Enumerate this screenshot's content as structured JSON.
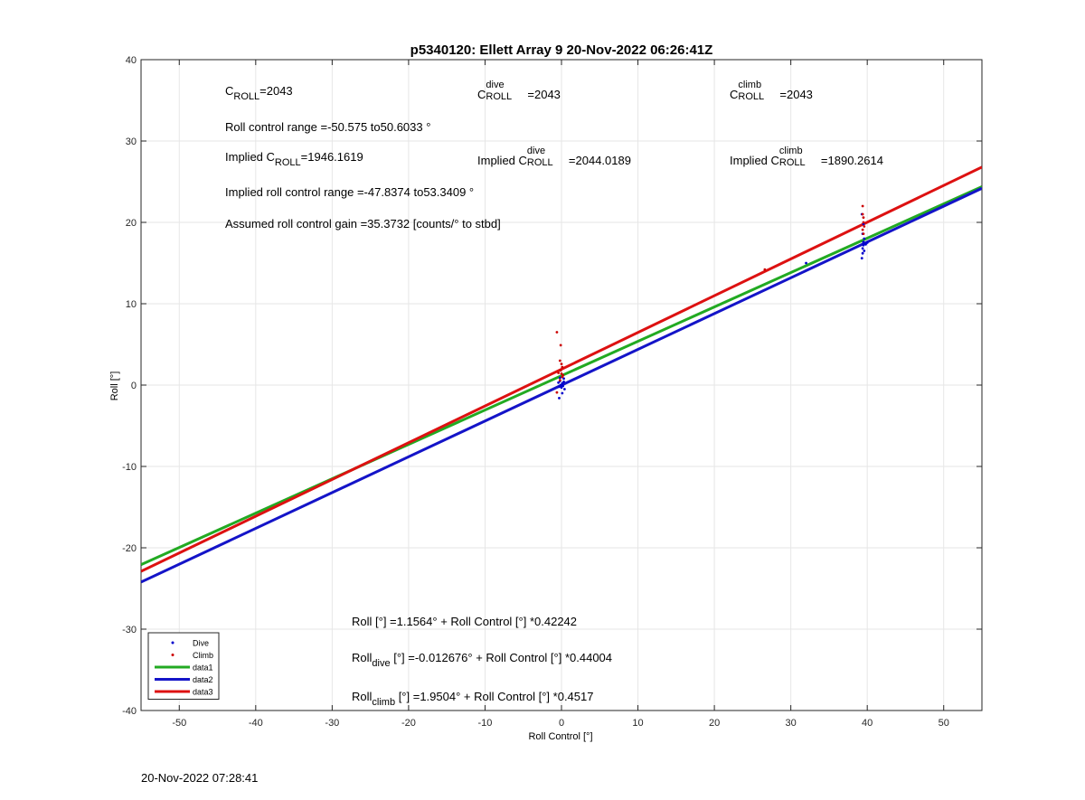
{
  "chart_data": {
    "type": "scatter",
    "title": "p5340120: Ellett Array 9 20-Nov-2022 06:26:41Z",
    "xlabel": "Roll Control [°]",
    "ylabel": "Roll [°]",
    "xlim": [
      -55,
      55
    ],
    "ylim": [
      -40,
      40
    ],
    "xticks": [
      -50,
      -40,
      -30,
      -20,
      -10,
      0,
      10,
      20,
      30,
      40,
      50
    ],
    "yticks": [
      -40,
      -30,
      -20,
      -10,
      0,
      10,
      20,
      30,
      40
    ],
    "grid": true,
    "legend_position": "bottom-left",
    "series": [
      {
        "name": "Dive",
        "kind": "points",
        "color": "#0000cc",
        "points": [
          [
            -0.4,
            0.3
          ],
          [
            -0.3,
            -0.2
          ],
          [
            -0.2,
            0.5
          ],
          [
            -0.1,
            0.0
          ],
          [
            0.0,
            -0.3
          ],
          [
            0.1,
            0.2
          ],
          [
            0.2,
            -0.1
          ],
          [
            0.3,
            0.4
          ],
          [
            0.4,
            -0.5
          ],
          [
            -0.3,
            -1.6
          ],
          [
            0.1,
            -1.0
          ],
          [
            0.3,
            0.8
          ],
          [
            -0.2,
            0.9
          ],
          [
            32.0,
            15.0
          ],
          [
            39.3,
            15.6
          ],
          [
            39.4,
            16.2
          ],
          [
            39.4,
            16.8
          ],
          [
            39.5,
            17.2
          ],
          [
            39.5,
            17.6
          ],
          [
            39.6,
            18.0
          ],
          [
            39.4,
            18.6
          ],
          [
            39.5,
            17.4
          ],
          [
            39.6,
            16.5
          ],
          [
            39.3,
            21.0
          ],
          [
            39.5,
            19.8
          ],
          [
            39.8,
            17.3
          ],
          [
            40.0,
            17.5
          ]
        ]
      },
      {
        "name": "Climb",
        "kind": "points",
        "color": "#cc0000",
        "points": [
          [
            -0.6,
            6.5
          ],
          [
            -0.1,
            4.9
          ],
          [
            -0.2,
            3.0
          ],
          [
            0.0,
            2.6
          ],
          [
            0.1,
            2.2
          ],
          [
            -0.1,
            1.8
          ],
          [
            0.0,
            1.4
          ],
          [
            0.1,
            1.0
          ],
          [
            -0.2,
            0.6
          ],
          [
            -0.4,
            1.5
          ],
          [
            -0.6,
            -0.9
          ],
          [
            0.2,
            1.2
          ],
          [
            26.6,
            14.2
          ],
          [
            39.4,
            22.0
          ],
          [
            39.4,
            21.0
          ],
          [
            39.5,
            20.6
          ],
          [
            39.5,
            20.0
          ],
          [
            39.6,
            19.5
          ],
          [
            39.4,
            19.1
          ],
          [
            39.5,
            18.6
          ]
        ]
      },
      {
        "name": "data1",
        "kind": "line",
        "color": "#22aa22",
        "intercept": 1.1564,
        "slope": 0.42242
      },
      {
        "name": "data2",
        "kind": "line",
        "color": "#1414c8",
        "intercept": -0.012676,
        "slope": 0.44004
      },
      {
        "name": "data3",
        "kind": "line",
        "color": "#dd1111",
        "intercept": 1.9504,
        "slope": 0.4517
      }
    ]
  },
  "annotations": {
    "c_roll_label": "C",
    "c_roll_sub": "ROLL",
    "c_roll_value": "=2043",
    "c_roll_dive_sup": "dive",
    "c_roll_dive_sub": "ROLL",
    "c_roll_dive_value": "=2043",
    "c_roll_climb_sup": "climb",
    "c_roll_climb_sub": "ROLL",
    "c_roll_climb_value": "=2043",
    "roll_control_range": "Roll control range =-50.575 to50.6033 °",
    "implied_prefix": "Implied C",
    "implied_c_roll_value": "=1946.1619",
    "implied_c_roll_dive_value": "=2044.0189",
    "implied_c_roll_climb_value": "=1890.2614",
    "implied_range": "Implied roll control range =-47.8374 to53.3409 °",
    "assumed_gain": "Assumed roll control gain =35.3732 [counts/° to stbd]",
    "fit_all": "Roll [°] =1.1564° + Roll Control [°] *0.42242",
    "fit_dive_prefix": "Roll",
    "fit_dive_sub": "dive",
    "fit_dive_rest": " [°] =-0.012676° + Roll Control [°] *0.44004",
    "fit_climb_prefix": "Roll",
    "fit_climb_sub": "climb",
    "fit_climb_rest": " [°] =1.9504° + Roll Control [°] *0.4517"
  },
  "footer": {
    "timestamp": "20-Nov-2022 07:28:41"
  }
}
